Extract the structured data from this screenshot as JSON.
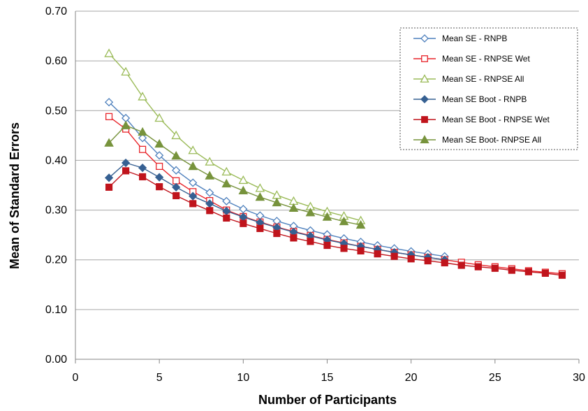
{
  "chart_data": {
    "type": "line",
    "title": "",
    "xlabel": "Number of Participants",
    "ylabel": "Mean of Standard Errors",
    "xlim": [
      0,
      30
    ],
    "ylim": [
      0,
      0.7
    ],
    "x_ticks": [
      "0",
      "5",
      "10",
      "15",
      "20",
      "25",
      "30"
    ],
    "y_ticks": [
      "0.00",
      "0.10",
      "0.20",
      "0.30",
      "0.40",
      "0.50",
      "0.60",
      "0.70"
    ],
    "grid": "horizontal",
    "legend_position": "top-right",
    "series": [
      {
        "name": "Mean SE - RNPB",
        "color": "#4F81BD",
        "marker": "diamond",
        "filled": false,
        "x": [
          2,
          3,
          4,
          5,
          6,
          7,
          8,
          9,
          10,
          11,
          12,
          13,
          14,
          15,
          16,
          17,
          18,
          19,
          20,
          21,
          22
        ],
        "y": [
          0.517,
          0.485,
          0.445,
          0.41,
          0.38,
          0.355,
          0.335,
          0.318,
          0.302,
          0.289,
          0.278,
          0.268,
          0.259,
          0.251,
          0.243,
          0.236,
          0.229,
          0.223,
          0.217,
          0.212,
          0.207
        ]
      },
      {
        "name": "Mean SE - RNPSE Wet",
        "color": "#E8242A",
        "marker": "square",
        "filled": false,
        "x": [
          2,
          3,
          4,
          5,
          6,
          7,
          8,
          9,
          10,
          11,
          12,
          13,
          14,
          15,
          16,
          17,
          18,
          19,
          20,
          21,
          22,
          23,
          24,
          25,
          26,
          27,
          28,
          29
        ],
        "y": [
          0.488,
          0.463,
          0.422,
          0.388,
          0.359,
          0.337,
          0.319,
          0.3,
          0.287,
          0.276,
          0.266,
          0.257,
          0.249,
          0.241,
          0.234,
          0.227,
          0.221,
          0.215,
          0.21,
          0.205,
          0.2,
          0.195,
          0.19,
          0.186,
          0.182,
          0.178,
          0.175,
          0.172
        ]
      },
      {
        "name": "Mean SE - RNPSE All",
        "color": "#9BBB59",
        "marker": "triangle",
        "filled": false,
        "x": [
          2,
          3,
          4,
          5,
          6,
          7,
          8,
          9,
          10,
          11,
          12,
          13,
          14,
          15,
          16,
          17
        ],
        "y": [
          0.615,
          0.578,
          0.528,
          0.485,
          0.45,
          0.42,
          0.397,
          0.377,
          0.36,
          0.344,
          0.33,
          0.318,
          0.307,
          0.297,
          0.288,
          0.279
        ]
      },
      {
        "name": "Mean SE Boot - RNPB",
        "color": "#366092",
        "marker": "diamond",
        "filled": true,
        "x": [
          2,
          3,
          4,
          5,
          6,
          7,
          8,
          9,
          10,
          11,
          12,
          13,
          14,
          15,
          16,
          17,
          18,
          19,
          20,
          21,
          22
        ],
        "y": [
          0.365,
          0.395,
          0.385,
          0.366,
          0.346,
          0.328,
          0.313,
          0.298,
          0.286,
          0.275,
          0.265,
          0.256,
          0.248,
          0.24,
          0.233,
          0.227,
          0.221,
          0.215,
          0.21,
          0.205,
          0.2
        ]
      },
      {
        "name": "Mean SE Boot - RNPSE Wet",
        "color": "#C0141C",
        "marker": "square",
        "filled": true,
        "x": [
          2,
          3,
          4,
          5,
          6,
          7,
          8,
          9,
          10,
          11,
          12,
          13,
          14,
          15,
          16,
          17,
          18,
          19,
          20,
          21,
          22,
          23,
          24,
          25,
          26,
          27,
          28,
          29
        ],
        "y": [
          0.346,
          0.379,
          0.367,
          0.347,
          0.329,
          0.313,
          0.299,
          0.284,
          0.273,
          0.263,
          0.253,
          0.244,
          0.237,
          0.229,
          0.223,
          0.218,
          0.212,
          0.207,
          0.202,
          0.198,
          0.194,
          0.189,
          0.186,
          0.183,
          0.179,
          0.176,
          0.173,
          0.169
        ]
      },
      {
        "name": "Mean SE Boot- RNPSE All",
        "color": "#77933C",
        "marker": "triangle",
        "filled": true,
        "x": [
          2,
          3,
          4,
          5,
          6,
          7,
          8,
          9,
          10,
          11,
          12,
          13,
          14,
          15,
          16,
          17
        ],
        "y": [
          0.435,
          0.47,
          0.457,
          0.433,
          0.409,
          0.388,
          0.369,
          0.353,
          0.339,
          0.326,
          0.315,
          0.304,
          0.295,
          0.286,
          0.277,
          0.27
        ]
      }
    ]
  }
}
